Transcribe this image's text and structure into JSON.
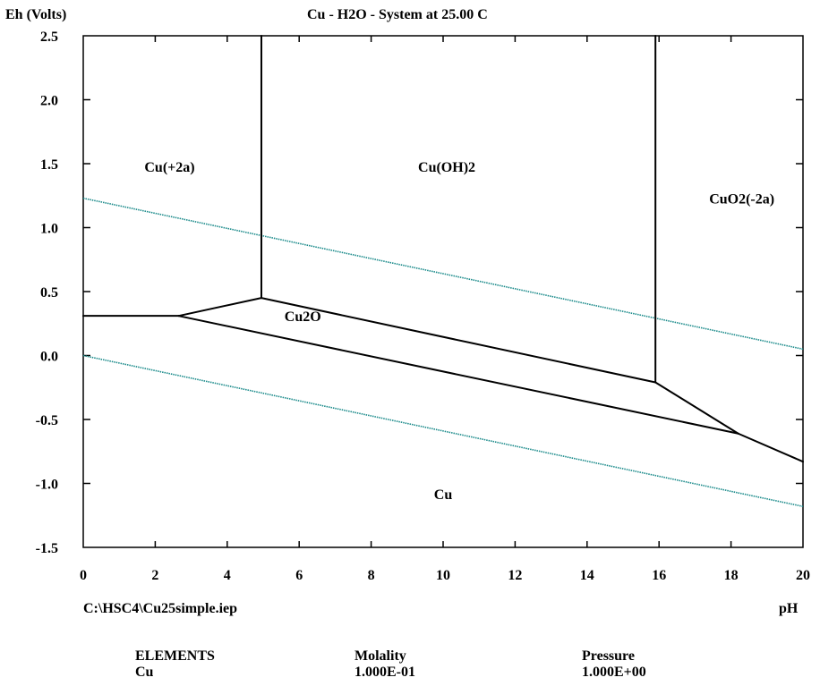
{
  "chart_data": {
    "type": "line",
    "title": "Cu - H2O - System at 25.00 C",
    "xlabel": "pH",
    "ylabel": "Eh (Volts)",
    "xlim": [
      0,
      20
    ],
    "ylim": [
      -1.5,
      2.5
    ],
    "x_ticks": [
      "0",
      "2",
      "4",
      "6",
      "8",
      "10",
      "12",
      "14",
      "16",
      "18",
      "20"
    ],
    "y_ticks": [
      "2.5",
      "2.0",
      "1.5",
      "1.0",
      "0.5",
      "0.0",
      "-0.5",
      "-1.0",
      "-1.5"
    ],
    "grid": false,
    "boundaries": [
      {
        "x": [
          0,
          2.65
        ],
        "y": [
          0.31,
          0.31
        ]
      },
      {
        "x": [
          2.65,
          4.95
        ],
        "y": [
          0.31,
          0.45
        ]
      },
      {
        "x": [
          4.95,
          4.95
        ],
        "y": [
          0.45,
          2.5
        ]
      },
      {
        "x": [
          4.95,
          15.9
        ],
        "y": [
          0.45,
          -0.21
        ]
      },
      {
        "x": [
          15.9,
          15.9
        ],
        "y": [
          -0.21,
          2.5
        ]
      },
      {
        "x": [
          2.65,
          18.2
        ],
        "y": [
          0.31,
          -0.61
        ]
      },
      {
        "x": [
          15.9,
          18.2
        ],
        "y": [
          -0.21,
          -0.61
        ]
      },
      {
        "x": [
          18.2,
          20
        ],
        "y": [
          -0.61,
          -0.83
        ]
      }
    ],
    "water_lines": [
      {
        "x": [
          0,
          20
        ],
        "y": [
          1.23,
          0.05
        ]
      },
      {
        "x": [
          0,
          20
        ],
        "y": [
          0.0,
          -1.18
        ]
      }
    ],
    "water_line_color": "#1a8a8a",
    "regions": [
      {
        "label": "Cu(+2a)",
        "x": 2.4,
        "y": 1.48
      },
      {
        "label": "Cu(OH)2",
        "x": 10.1,
        "y": 1.48
      },
      {
        "label": "CuO2(-2a)",
        "x": 18.3,
        "y": 1.23
      },
      {
        "label": "Cu2O",
        "x": 6.1,
        "y": 0.31
      },
      {
        "label": "Cu",
        "x": 10.0,
        "y": -1.08
      }
    ]
  },
  "footer": {
    "file_path": "C:\\HSC4\\Cu25simple.iep",
    "elements_header": "ELEMENTS",
    "molality_header": "Molality",
    "pressure_header": "Pressure",
    "element": "Cu",
    "molality": "1.000E-01",
    "pressure": "1.000E+00"
  }
}
